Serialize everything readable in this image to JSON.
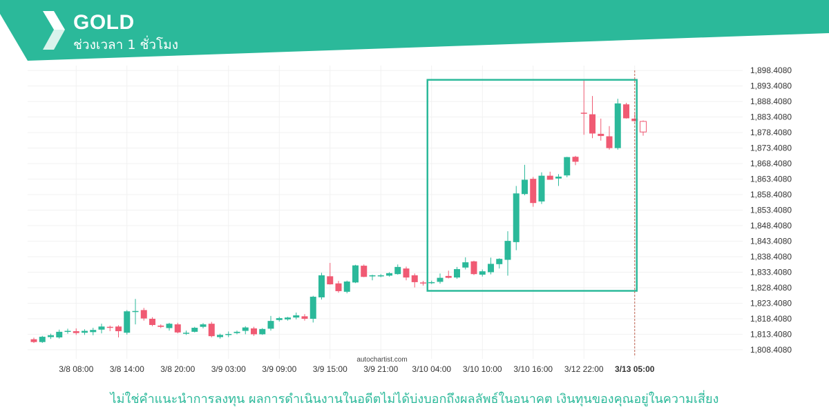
{
  "header": {
    "symbol": "GOLD",
    "timeframe": "ช่วงเวลา 1 ชั่วโมง",
    "bg_color": "#2bb99a"
  },
  "footer": {
    "disclaimer": "ไม่ใช่คำแนะนำการลงทุน ผลการดำเนินงานในอดีตไม่ได้บ่งบอกถึงผลลัพธ์ในอนาคต เงินทุนของคุณอยู่ในความเสี่ยง"
  },
  "chart_data": {
    "type": "candlestick",
    "watermark": "autochartist.com",
    "y_ticks": [
      "1,808.4080",
      "1,813.4080",
      "1,818.4080",
      "1,823.4080",
      "1,828.4080",
      "1,833.4080",
      "1,838.4080",
      "1,843.4080",
      "1,848.4080",
      "1,853.4080",
      "1,858.4080",
      "1,863.4080",
      "1,868.4080",
      "1,873.4080",
      "1,878.4080",
      "1,883.4080",
      "1,888.4080",
      "1,893.4080",
      "1,898.4080"
    ],
    "x_ticks": [
      "3/8 08:00",
      "3/8 14:00",
      "3/8 20:00",
      "3/9 03:00",
      "3/9 09:00",
      "3/9 15:00",
      "3/9 21:00",
      "3/10 04:00",
      "3/10 10:00",
      "3/10 16:00",
      "3/12 22:00",
      "3/13 05:00"
    ],
    "x_tick_candle_index": [
      5,
      11,
      17,
      23,
      29,
      35,
      41,
      47,
      53,
      59,
      65,
      71
    ],
    "highlight_x_label": "3/13 05:00",
    "ylim": [
      1805.5,
      1900.0
    ],
    "up_color": "#2bb99a",
    "down_color": "#f05a73",
    "pattern_box": {
      "start_index": 47,
      "end_index": 71,
      "top": 1895.4,
      "bottom": 1827.4,
      "color": "#2bb99a"
    },
    "forecast_start_index": 71,
    "candles": [
      {
        "o": 1811.8,
        "h": 1812.3,
        "l": 1810.6,
        "c": 1810.9
      },
      {
        "o": 1810.9,
        "h": 1812.9,
        "l": 1810.6,
        "c": 1812.6
      },
      {
        "o": 1812.5,
        "h": 1813.6,
        "l": 1811.9,
        "c": 1813.1
      },
      {
        "o": 1812.4,
        "h": 1814.9,
        "l": 1812.0,
        "c": 1814.2
      },
      {
        "o": 1814.3,
        "h": 1815.2,
        "l": 1813.6,
        "c": 1814.5
      },
      {
        "o": 1814.4,
        "h": 1815.3,
        "l": 1813.2,
        "c": 1813.8
      },
      {
        "o": 1813.9,
        "h": 1815.0,
        "l": 1813.2,
        "c": 1814.5
      },
      {
        "o": 1814.1,
        "h": 1815.5,
        "l": 1813.1,
        "c": 1814.8
      },
      {
        "o": 1814.9,
        "h": 1816.8,
        "l": 1813.7,
        "c": 1815.9
      },
      {
        "o": 1815.8,
        "h": 1816.2,
        "l": 1814.4,
        "c": 1815.5
      },
      {
        "o": 1815.9,
        "h": 1816.3,
        "l": 1812.4,
        "c": 1814.4
      },
      {
        "o": 1813.9,
        "h": 1821.2,
        "l": 1813.3,
        "c": 1820.8
      },
      {
        "o": 1820.6,
        "h": 1824.8,
        "l": 1816.6,
        "c": 1820.9
      },
      {
        "o": 1821.2,
        "h": 1821.9,
        "l": 1817.8,
        "c": 1818.5
      },
      {
        "o": 1818.4,
        "h": 1818.9,
        "l": 1816.0,
        "c": 1816.4
      },
      {
        "o": 1816.2,
        "h": 1816.6,
        "l": 1815.4,
        "c": 1815.8
      },
      {
        "o": 1815.4,
        "h": 1817.1,
        "l": 1814.6,
        "c": 1816.8
      },
      {
        "o": 1816.6,
        "h": 1817.1,
        "l": 1813.7,
        "c": 1814.0
      },
      {
        "o": 1813.8,
        "h": 1814.6,
        "l": 1813.2,
        "c": 1813.9
      },
      {
        "o": 1814.2,
        "h": 1815.8,
        "l": 1814.0,
        "c": 1815.5
      },
      {
        "o": 1815.8,
        "h": 1817.0,
        "l": 1815.3,
        "c": 1816.6
      },
      {
        "o": 1816.8,
        "h": 1817.4,
        "l": 1812.4,
        "c": 1812.8
      },
      {
        "o": 1812.5,
        "h": 1813.6,
        "l": 1812.0,
        "c": 1813.2
      },
      {
        "o": 1813.2,
        "h": 1814.3,
        "l": 1812.5,
        "c": 1813.5
      },
      {
        "o": 1813.8,
        "h": 1814.6,
        "l": 1813.4,
        "c": 1814.2
      },
      {
        "o": 1814.5,
        "h": 1816.0,
        "l": 1813.4,
        "c": 1815.6
      },
      {
        "o": 1815.3,
        "h": 1815.8,
        "l": 1812.9,
        "c": 1813.4
      },
      {
        "o": 1813.4,
        "h": 1815.4,
        "l": 1813.2,
        "c": 1815.1
      },
      {
        "o": 1815.2,
        "h": 1819.3,
        "l": 1814.6,
        "c": 1817.7
      },
      {
        "o": 1818.0,
        "h": 1819.0,
        "l": 1817.5,
        "c": 1818.6
      },
      {
        "o": 1818.2,
        "h": 1819.0,
        "l": 1817.8,
        "c": 1818.8
      },
      {
        "o": 1818.8,
        "h": 1820.4,
        "l": 1818.2,
        "c": 1819.5
      },
      {
        "o": 1819.2,
        "h": 1819.9,
        "l": 1817.8,
        "c": 1818.4
      },
      {
        "o": 1818.4,
        "h": 1825.8,
        "l": 1817.2,
        "c": 1825.5
      },
      {
        "o": 1825.3,
        "h": 1833.2,
        "l": 1824.6,
        "c": 1832.4
      },
      {
        "o": 1832.1,
        "h": 1836.4,
        "l": 1829.4,
        "c": 1829.5
      },
      {
        "o": 1829.8,
        "h": 1830.6,
        "l": 1826.8,
        "c": 1827.3
      },
      {
        "o": 1827.1,
        "h": 1830.7,
        "l": 1826.6,
        "c": 1830.4
      },
      {
        "o": 1830.1,
        "h": 1835.8,
        "l": 1829.9,
        "c": 1835.6
      },
      {
        "o": 1835.5,
        "h": 1835.9,
        "l": 1831.8,
        "c": 1831.9
      },
      {
        "o": 1832.1,
        "h": 1832.6,
        "l": 1830.8,
        "c": 1832.4
      },
      {
        "o": 1832.1,
        "h": 1832.8,
        "l": 1831.8,
        "c": 1832.4
      },
      {
        "o": 1832.3,
        "h": 1833.4,
        "l": 1832.0,
        "c": 1833.1
      },
      {
        "o": 1832.8,
        "h": 1835.9,
        "l": 1832.6,
        "c": 1835.1
      },
      {
        "o": 1834.6,
        "h": 1835.2,
        "l": 1830.8,
        "c": 1831.7
      },
      {
        "o": 1832.4,
        "h": 1833.0,
        "l": 1828.5,
        "c": 1830.2
      },
      {
        "o": 1830.1,
        "h": 1830.6,
        "l": 1829.1,
        "c": 1829.8
      },
      {
        "o": 1830.0,
        "h": 1830.7,
        "l": 1829.6,
        "c": 1830.2
      },
      {
        "o": 1830.3,
        "h": 1833.0,
        "l": 1829.7,
        "c": 1831.6
      },
      {
        "o": 1832.2,
        "h": 1833.9,
        "l": 1831.4,
        "c": 1831.6
      },
      {
        "o": 1831.7,
        "h": 1835.1,
        "l": 1831.3,
        "c": 1834.4
      },
      {
        "o": 1834.9,
        "h": 1838.2,
        "l": 1834.3,
        "c": 1836.6
      },
      {
        "o": 1836.9,
        "h": 1837.1,
        "l": 1832.5,
        "c": 1832.8
      },
      {
        "o": 1832.6,
        "h": 1834.3,
        "l": 1832.0,
        "c": 1833.7
      },
      {
        "o": 1833.4,
        "h": 1838.1,
        "l": 1832.7,
        "c": 1836.1
      },
      {
        "o": 1836.0,
        "h": 1837.9,
        "l": 1834.6,
        "c": 1837.7
      },
      {
        "o": 1837.4,
        "h": 1846.6,
        "l": 1832.3,
        "c": 1843.5
      },
      {
        "o": 1843.1,
        "h": 1861.2,
        "l": 1840.5,
        "c": 1858.8
      },
      {
        "o": 1858.6,
        "h": 1868.0,
        "l": 1858.2,
        "c": 1863.2
      },
      {
        "o": 1863.5,
        "h": 1864.1,
        "l": 1854.5,
        "c": 1855.7
      },
      {
        "o": 1856.2,
        "h": 1865.6,
        "l": 1855.4,
        "c": 1864.5
      },
      {
        "o": 1864.5,
        "h": 1865.8,
        "l": 1863.7,
        "c": 1863.2
      },
      {
        "o": 1863.6,
        "h": 1865.0,
        "l": 1861.2,
        "c": 1864.2
      },
      {
        "o": 1864.6,
        "h": 1870.6,
        "l": 1864.0,
        "c": 1870.5
      },
      {
        "o": 1870.6,
        "h": 1870.9,
        "l": 1867.9,
        "c": 1869.0
      },
      {
        "o": 1884.8,
        "h": 1895.3,
        "l": 1877.7,
        "c": 1884.5
      },
      {
        "o": 1884.3,
        "h": 1890.2,
        "l": 1876.6,
        "c": 1878.1
      },
      {
        "o": 1878.0,
        "h": 1882.9,
        "l": 1875.8,
        "c": 1877.3
      },
      {
        "o": 1877.2,
        "h": 1880.5,
        "l": 1872.9,
        "c": 1873.4
      },
      {
        "o": 1873.4,
        "h": 1889.3,
        "l": 1872.9,
        "c": 1887.8
      },
      {
        "o": 1887.5,
        "h": 1888.0,
        "l": 1882.9,
        "c": 1883.0
      },
      {
        "o": 1882.9,
        "h": 1884.4,
        "l": 1881.9,
        "c": 1882.1
      },
      {
        "o": 1882.0,
        "h": 1882.3,
        "l": 1877.4,
        "c": 1878.6
      }
    ]
  }
}
